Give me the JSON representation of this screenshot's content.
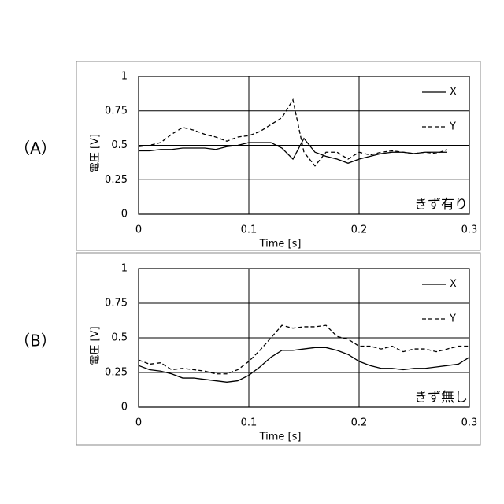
{
  "chart_data": [
    {
      "type": "line",
      "label": "（A）",
      "annotation": "きず有り",
      "xlabel": "Time [s]",
      "ylabel": "電圧 [V]",
      "x": [
        0,
        0.01,
        0.02,
        0.03,
        0.04,
        0.05,
        0.06,
        0.07,
        0.08,
        0.09,
        0.1,
        0.11,
        0.12,
        0.13,
        0.14,
        0.15,
        0.16,
        0.17,
        0.18,
        0.19,
        0.2,
        0.21,
        0.22,
        0.23,
        0.24,
        0.25,
        0.26,
        0.27,
        0.28
      ],
      "series": [
        {
          "name": "X",
          "color": "#000000",
          "linestyle": "solid",
          "values": [
            0.46,
            0.46,
            0.47,
            0.47,
            0.48,
            0.48,
            0.48,
            0.47,
            0.49,
            0.5,
            0.52,
            0.52,
            0.52,
            0.48,
            0.4,
            0.55,
            0.45,
            0.42,
            0.4,
            0.37,
            0.4,
            0.42,
            0.44,
            0.45,
            0.45,
            0.44,
            0.45,
            0.45,
            0.45
          ]
        },
        {
          "name": "Y",
          "color": "#000000",
          "linestyle": "dashed",
          "values": [
            0.49,
            0.5,
            0.52,
            0.58,
            0.63,
            0.61,
            0.58,
            0.56,
            0.53,
            0.56,
            0.57,
            0.6,
            0.65,
            0.7,
            0.83,
            0.45,
            0.35,
            0.45,
            0.45,
            0.4,
            0.45,
            0.43,
            0.45,
            0.46,
            0.45,
            0.44,
            0.45,
            0.44,
            0.47
          ]
        }
      ],
      "xlim": [
        0,
        0.3
      ],
      "xticks": [
        0,
        0.1,
        0.2,
        0.3
      ],
      "ylim": [
        0,
        1
      ],
      "yticks": [
        0,
        0.25,
        0.5,
        0.75,
        1
      ],
      "grid": true,
      "legend": "upper right"
    },
    {
      "type": "line",
      "label": "（B）",
      "annotation": "きず無し",
      "xlabel": "Time [s]",
      "ylabel": "電圧 [V]",
      "x": [
        0,
        0.01,
        0.02,
        0.03,
        0.04,
        0.05,
        0.06,
        0.07,
        0.08,
        0.09,
        0.1,
        0.11,
        0.12,
        0.13,
        0.14,
        0.15,
        0.16,
        0.17,
        0.18,
        0.19,
        0.2,
        0.21,
        0.22,
        0.23,
        0.24,
        0.25,
        0.26,
        0.27,
        0.28,
        0.29,
        0.3
      ],
      "series": [
        {
          "name": "X",
          "color": "#000000",
          "linestyle": "solid",
          "values": [
            0.3,
            0.27,
            0.26,
            0.24,
            0.21,
            0.21,
            0.2,
            0.19,
            0.18,
            0.19,
            0.23,
            0.29,
            0.36,
            0.41,
            0.41,
            0.42,
            0.43,
            0.43,
            0.41,
            0.38,
            0.33,
            0.3,
            0.28,
            0.28,
            0.27,
            0.28,
            0.28,
            0.29,
            0.3,
            0.31,
            0.36
          ]
        },
        {
          "name": "Y",
          "color": "#000000",
          "linestyle": "dashed",
          "values": [
            0.34,
            0.31,
            0.32,
            0.27,
            0.28,
            0.27,
            0.26,
            0.24,
            0.24,
            0.27,
            0.33,
            0.41,
            0.5,
            0.59,
            0.57,
            0.58,
            0.58,
            0.59,
            0.51,
            0.49,
            0.44,
            0.44,
            0.42,
            0.44,
            0.4,
            0.42,
            0.42,
            0.4,
            0.42,
            0.44,
            0.44
          ]
        }
      ],
      "xlim": [
        0,
        0.3
      ],
      "xticks": [
        0,
        0.1,
        0.2,
        0.3
      ],
      "ylim": [
        0,
        1
      ],
      "yticks": [
        0,
        0.25,
        0.5,
        0.75,
        1
      ],
      "grid": true,
      "legend": "upper right"
    }
  ]
}
